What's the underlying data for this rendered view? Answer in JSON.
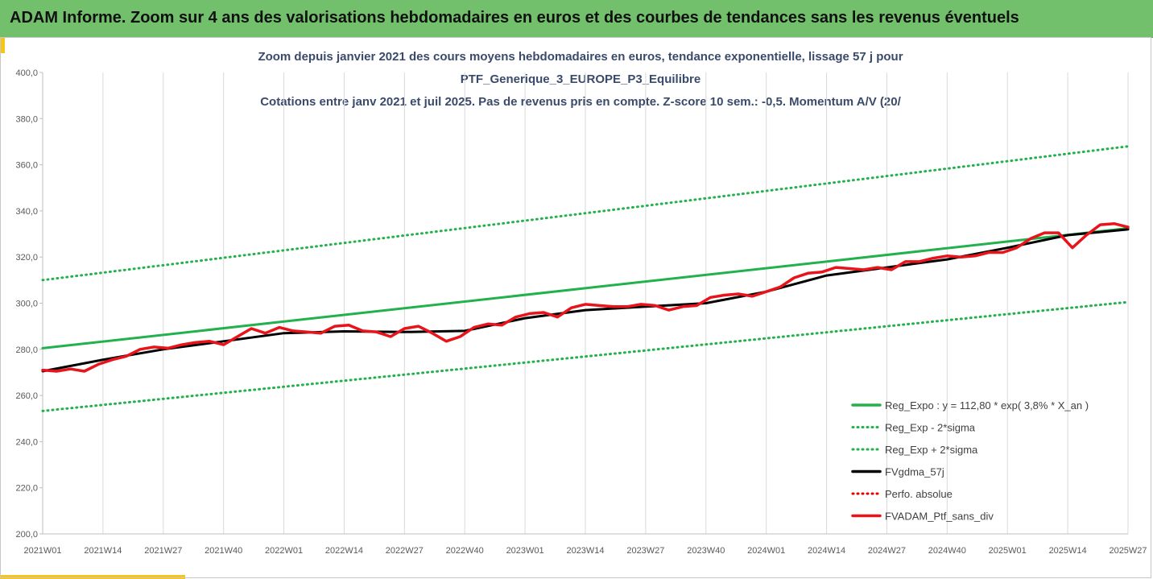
{
  "header": {
    "title": "ADAM Informe. Zoom sur 4 ans des valorisations hebdomadaires en euros et des courbes de tendances sans les revenus éventuels",
    "background": "#72c06c"
  },
  "chart_data": {
    "type": "line",
    "title_lines": [
      "Zoom depuis janvier 2021 des cours moyens hebdomadaires  en euros, tendance exponentielle, lissage 57 j pour",
      "PTF_Generique_3_EUROPE_P3_Equilibre",
      "Cotations entre janv 2021 et juil 2025. Pas de revenus pris en compte. Z-score 10 sem.: -0,5. Momentum A/V (20/"
    ],
    "y_ticks": [
      "200,0",
      "220,0",
      "240,0",
      "260,0",
      "280,0",
      "300,0",
      "320,0",
      "340,0",
      "360,0",
      "380,0",
      "400,0"
    ],
    "ylim": [
      200,
      400
    ],
    "x_ticks": [
      "2021W01",
      "2021W14",
      "2021W27",
      "2021W40",
      "2022W01",
      "2022W14",
      "2022W27",
      "2022W40",
      "2023W01",
      "2023W14",
      "2023W27",
      "2023W40",
      "2024W01",
      "2024W14",
      "2024W27",
      "2024W40",
      "2025W01",
      "2025W14",
      "2025W27"
    ],
    "xlim_weeks": [
      0,
      234
    ],
    "grid": "vertical",
    "legend_position": "bottom-right",
    "series": [
      {
        "name": "Reg_Expo : y = 112,80 * exp( 3,8% *  X_an )",
        "color": "#22b14c",
        "style": "solid",
        "x_weeks": [
          0,
          234
        ],
        "y": [
          280.5,
          332.5
        ]
      },
      {
        "name": "Reg_Exp - 2*sigma",
        "color": "#22b14c",
        "style": "dotted",
        "x_weeks": [
          0,
          234
        ],
        "y": [
          253.3,
          300.5
        ]
      },
      {
        "name": "Reg_Exp + 2*sigma",
        "color": "#22b14c",
        "style": "dotted",
        "x_weeks": [
          0,
          234
        ],
        "y": [
          310.0,
          368.0
        ]
      },
      {
        "name": "FVgdma_57j",
        "color": "#000000",
        "style": "solid",
        "x_weeks": [
          0,
          13,
          26,
          39,
          52,
          65,
          78,
          91,
          104,
          117,
          130,
          143,
          156,
          169,
          182,
          195,
          208,
          221,
          234
        ],
        "y": [
          270.5,
          275.5,
          280.0,
          283.5,
          287.0,
          287.8,
          287.5,
          288.0,
          293.5,
          297.0,
          298.5,
          300.0,
          305.0,
          312.0,
          315.5,
          319.0,
          324.0,
          329.5,
          332.0
        ]
      },
      {
        "name": "Perfo. absolue",
        "color": "#e00000",
        "style": "dotted",
        "x_weeks": [],
        "y": []
      },
      {
        "name": "FVADAM_Ptf_sans_div",
        "color": "#e8141a",
        "style": "solid",
        "x_weeks": [
          0,
          3,
          6,
          9,
          12,
          15,
          18,
          21,
          24,
          27,
          30,
          33,
          36,
          39,
          42,
          45,
          48,
          51,
          54,
          57,
          60,
          63,
          66,
          69,
          72,
          75,
          78,
          81,
          84,
          87,
          90,
          93,
          96,
          99,
          102,
          105,
          108,
          111,
          114,
          117,
          120,
          123,
          126,
          129,
          132,
          135,
          138,
          141,
          144,
          147,
          150,
          153,
          156,
          159,
          162,
          165,
          168,
          171,
          174,
          177,
          180,
          183,
          186,
          189,
          192,
          195,
          198,
          201,
          204,
          207,
          210,
          213,
          216,
          219,
          222,
          225,
          228,
          231,
          234
        ],
        "y": [
          271,
          270.5,
          271.5,
          270.5,
          273.5,
          275.5,
          277,
          280,
          281,
          280.5,
          282,
          283,
          283.5,
          282,
          285.5,
          289,
          287,
          289.5,
          288,
          287.5,
          287,
          290,
          290.5,
          288,
          287.5,
          285.5,
          289,
          290,
          287,
          283.5,
          285.5,
          289.5,
          291,
          290.5,
          294,
          295.5,
          296,
          294,
          298,
          299.5,
          299,
          298.5,
          298.5,
          299.5,
          299,
          297,
          298.5,
          299,
          302.5,
          303.5,
          304,
          303,
          305,
          307,
          311,
          313,
          313.5,
          315.5,
          315,
          314.5,
          315.5,
          314.5,
          318,
          318,
          319.5,
          320.5,
          320,
          320.5,
          322,
          322,
          324,
          328,
          330.5,
          330.5,
          324,
          329.5,
          334,
          334.5,
          333
        ]
      }
    ]
  }
}
